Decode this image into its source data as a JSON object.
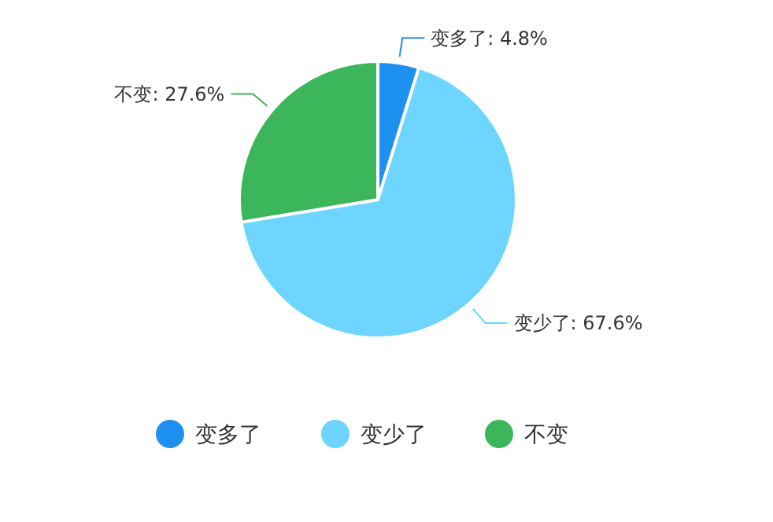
{
  "chart_data": {
    "type": "pie",
    "categories": [
      "变多了",
      "变少了",
      "不变"
    ],
    "values": [
      4.8,
      67.6,
      27.6
    ],
    "colors": [
      "#1e90f0",
      "#6dd5ff",
      "#3cb65a"
    ],
    "value_labels": [
      "变多了: 4.8%",
      "变少了: 67.6%",
      "不变: 27.6%"
    ],
    "legend": "bottom"
  }
}
